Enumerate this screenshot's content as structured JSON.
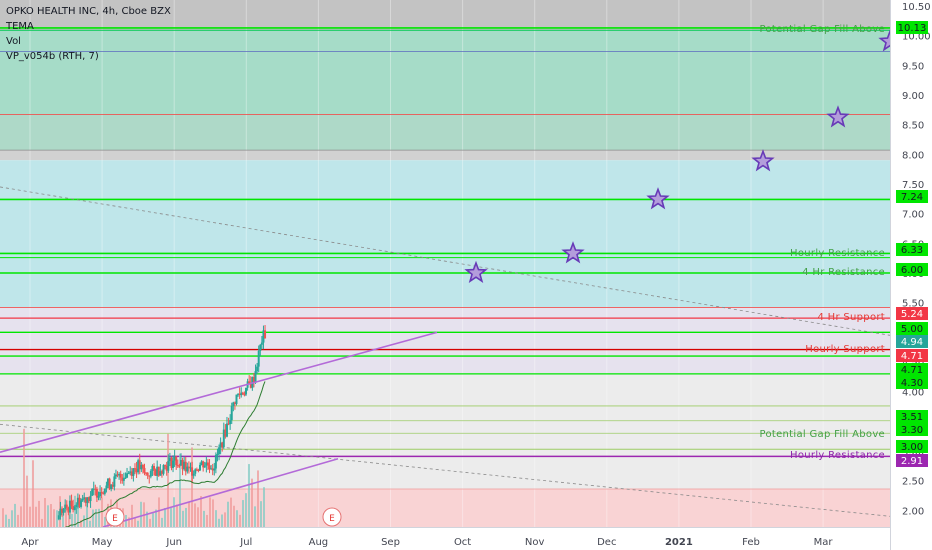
{
  "header": {
    "symbol_line": "OPKO HEALTH INC, 4h, Cboe BZX",
    "indicators": [
      "TEMA",
      "Vol",
      "VP_v054b (RTH, 7)"
    ]
  },
  "chart_data": {
    "type": "candlestick",
    "x_ticks": [
      "Apr",
      "May",
      "Jun",
      "Jul",
      "Aug",
      "Sep",
      "Oct",
      "Nov",
      "Dec",
      "2021",
      "Feb",
      "Mar"
    ],
    "y_ticks": [
      "10.50",
      "10.00",
      "9.50",
      "9.00",
      "8.50",
      "8.00",
      "7.50",
      "7.00",
      "6.50",
      "6.00",
      "5.50",
      "5.00",
      "4.50",
      "4.00",
      "3.50",
      "3.00",
      "2.50",
      "2.00"
    ],
    "ylim": [
      1.72,
      10.6
    ],
    "price_path": [
      [
        0.0,
        1.85
      ],
      [
        0.3,
        1.9
      ],
      [
        0.6,
        2.1
      ],
      [
        0.9,
        2.3
      ],
      [
        1.1,
        2.45
      ],
      [
        1.3,
        2.6
      ],
      [
        1.5,
        2.75
      ],
      [
        1.6,
        2.6
      ],
      [
        1.8,
        2.7
      ],
      [
        2.0,
        2.85
      ],
      [
        2.2,
        2.65
      ],
      [
        2.4,
        2.8
      ],
      [
        2.55,
        2.75
      ],
      [
        2.7,
        3.3
      ],
      [
        2.85,
        3.9
      ],
      [
        3.0,
        4.05
      ],
      [
        3.1,
        4.2
      ],
      [
        3.22,
        4.9
      ],
      [
        3.28,
        5.0
      ]
    ],
    "candlestick_values": {
      "last": 4.94,
      "high": 5.08
    },
    "price_labels": [
      {
        "value": "10.13",
        "color": "#00e600"
      },
      {
        "value": "7.24",
        "color": "#00e600"
      },
      {
        "value": "6.33",
        "color": "#00e600"
      },
      {
        "value": "6.00",
        "color": "#00e600"
      },
      {
        "value": "5.24",
        "color": "#f23645"
      },
      {
        "value": "5.00",
        "color": "#00e600"
      },
      {
        "value": "4.94",
        "color": "#26a69a"
      },
      {
        "value": "4.71",
        "color": "#f23645"
      },
      {
        "value": "4.71",
        "color": "#00e600"
      },
      {
        "value": "4.30",
        "color": "#00e600"
      },
      {
        "value": "3.51",
        "color": "#00e600"
      },
      {
        "value": "3.30",
        "color": "#00e600"
      },
      {
        "value": "3.00",
        "color": "#00e600"
      },
      {
        "value": "2.91",
        "color": "#9c27b0"
      }
    ],
    "annotations": [
      "Potential Gap Fill Above",
      "Hourly Resistance",
      "4 Hr Resistance",
      "4 Hr Support",
      "Hourly Support",
      "Potential Gap Fill Above",
      "Hourly Resistance"
    ],
    "levels": [
      10.13,
      10.09,
      9.73,
      8.67,
      8.07,
      7.24,
      6.33,
      6.26,
      6.0,
      5.42,
      5.24,
      5.0,
      4.71,
      4.6,
      4.3,
      3.76,
      3.51,
      3.3,
      3.03,
      2.91,
      2.36
    ],
    "targets": [
      6.0,
      6.33,
      7.24,
      7.88,
      8.62,
      9.9
    ],
    "event_markers": [
      "E",
      "E"
    ],
    "colors": {
      "support": "#00e600",
      "resistance": "#f23645",
      "trend": "#b36ad8",
      "target": "#673ab7",
      "up": "#26a69a",
      "down": "#ef5350",
      "zone_gray": "#bdbdbd",
      "zone_green": "#a6dcc8",
      "zone_cyan": "#bfe6ea",
      "zone_lilac": "#e6e2ee",
      "zone_pink": "#f9d3d4"
    }
  }
}
